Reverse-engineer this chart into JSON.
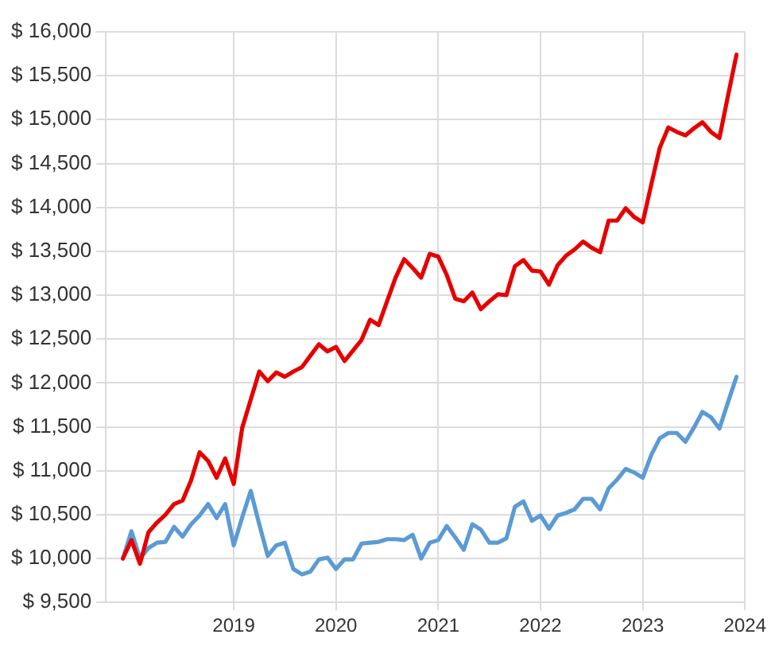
{
  "chart_data": {
    "type": "line",
    "x": [
      "2017-12",
      "2018-01",
      "2018-02",
      "2018-03",
      "2018-04",
      "2018-05",
      "2018-06",
      "2018-07",
      "2018-08",
      "2018-09",
      "2018-10",
      "2018-11",
      "2018-12",
      "2019-01",
      "2019-02",
      "2019-03",
      "2019-04",
      "2019-05",
      "2019-06",
      "2019-07",
      "2019-08",
      "2019-09",
      "2019-10",
      "2019-11",
      "2019-12",
      "2020-01",
      "2020-02",
      "2020-03",
      "2020-04",
      "2020-05",
      "2020-06",
      "2020-07",
      "2020-08",
      "2020-09",
      "2020-10",
      "2020-11",
      "2020-12",
      "2021-01",
      "2021-02",
      "2021-03",
      "2021-04",
      "2021-05",
      "2021-06",
      "2021-07",
      "2021-08",
      "2021-09",
      "2021-10",
      "2021-11",
      "2021-12",
      "2022-01",
      "2022-02",
      "2022-03",
      "2022-04",
      "2022-05",
      "2022-06",
      "2022-07",
      "2022-08",
      "2022-09",
      "2022-10",
      "2022-11",
      "2022-12",
      "2023-01",
      "2023-02",
      "2023-03",
      "2023-04",
      "2023-05",
      "2023-06",
      "2023-07",
      "2023-08",
      "2023-09",
      "2023-10",
      "2023-11",
      "2023-12"
    ],
    "series": [
      {
        "color": "#e60000",
        "values": [
          10000,
          10210,
          9940,
          10300,
          10410,
          10500,
          10620,
          10660,
          10890,
          11210,
          11110,
          10920,
          11140,
          10850,
          11490,
          11810,
          12130,
          12020,
          12120,
          12070,
          12130,
          12180,
          12310,
          12440,
          12360,
          12410,
          12250,
          12370,
          12490,
          12720,
          12660,
          12930,
          13200,
          13410,
          13310,
          13200,
          13470,
          13440,
          13230,
          12960,
          12930,
          13030,
          12840,
          12930,
          13010,
          13000,
          13330,
          13400,
          13280,
          13270,
          13120,
          13340,
          13450,
          13520,
          13610,
          13540,
          13490,
          13850,
          13850,
          13990,
          13890,
          13830,
          14260,
          14680,
          14910,
          14860,
          14820,
          14900,
          14970,
          14860,
          14790,
          15270,
          15740
        ]
      },
      {
        "color": "#5b9bd5",
        "values": [
          10000,
          10310,
          10000,
          10120,
          10180,
          10190,
          10360,
          10250,
          10390,
          10490,
          10620,
          10460,
          10620,
          10150,
          10470,
          10770,
          10390,
          10030,
          10150,
          10180,
          9880,
          9820,
          9850,
          9990,
          10010,
          9880,
          9990,
          9990,
          10170,
          10180,
          10190,
          10220,
          10220,
          10210,
          10270,
          10000,
          10180,
          10210,
          10370,
          10240,
          10100,
          10390,
          10330,
          10180,
          10180,
          10230,
          10590,
          10650,
          10430,
          10490,
          10340,
          10490,
          10520,
          10560,
          10680,
          10680,
          10560,
          10800,
          10900,
          11020,
          10980,
          10920,
          11180,
          11370,
          11430,
          11430,
          11330,
          11490,
          11670,
          11610,
          11480,
          11780,
          12070
        ]
      }
    ],
    "xlim": [
      "2017-10",
      "2024-01"
    ],
    "xticks": [
      "2019",
      "2020",
      "2021",
      "2022",
      "2023",
      "2024"
    ],
    "ylim": [
      9500,
      16000
    ],
    "yticks": [
      {
        "value": 9500,
        "label": "$ 9,500"
      },
      {
        "value": 10000,
        "label": "$ 10,000"
      },
      {
        "value": 10500,
        "label": "$ 10,500"
      },
      {
        "value": 11000,
        "label": "$ 11,000"
      },
      {
        "value": 11500,
        "label": "$ 11,500"
      },
      {
        "value": 12000,
        "label": "$ 12,000"
      },
      {
        "value": 12500,
        "label": "$ 12,500"
      },
      {
        "value": 13000,
        "label": "$ 13,000"
      },
      {
        "value": 13500,
        "label": "$ 13,500"
      },
      {
        "value": 14000,
        "label": "$ 14,000"
      },
      {
        "value": 14500,
        "label": "$ 14,500"
      },
      {
        "value": 15000,
        "label": "$ 15,000"
      },
      {
        "value": 15500,
        "label": "$ 15,500"
      },
      {
        "value": 16000,
        "label": "$ 16,000"
      }
    ],
    "grid": true,
    "legend": false,
    "marker": "none",
    "line_style": "solid"
  }
}
